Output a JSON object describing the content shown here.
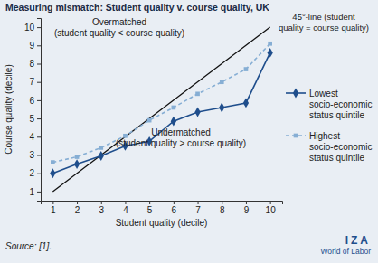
{
  "chart_data": {
    "type": "line",
    "title": "Measuring mismatch: Student quality v. course quality, UK",
    "x_label": "Student quality (decile)",
    "y_label": "Course quality (decile)",
    "x": [
      1,
      2,
      3,
      4,
      5,
      6,
      7,
      8,
      9,
      10
    ],
    "series": [
      {
        "name": "Lowest socio-economic status quintile",
        "color": "#1f4e8c",
        "marker": "diamond",
        "line_style": "solid",
        "values": [
          2.0,
          2.5,
          2.95,
          3.5,
          3.75,
          4.85,
          5.35,
          5.6,
          5.85,
          8.6
        ]
      },
      {
        "name": "Highest socio-economic status quintile",
        "color": "#86aed4",
        "marker": "square",
        "line_style": "dashed",
        "values": [
          2.6,
          2.9,
          3.4,
          4.05,
          4.9,
          5.6,
          6.35,
          7.0,
          7.7,
          9.1
        ]
      }
    ],
    "xlim": [
      0.5,
      10.5
    ],
    "ylim": [
      0.5,
      10.5
    ],
    "xticks": [
      1,
      2,
      3,
      4,
      5,
      6,
      7,
      8,
      9,
      10
    ],
    "yticks": [
      1,
      2,
      3,
      4,
      5,
      6,
      7,
      8,
      9,
      10
    ],
    "grid": false,
    "legend": "right",
    "annotations": [
      [
        "Overmatched",
        "(student quality < course quality)"
      ],
      [
        "Undermatched",
        "(student quality > course quality)"
      ],
      [
        "45°-line (student",
        "quality = course quality)"
      ]
    ],
    "source": "Source: [1].",
    "logo": [
      "IZA",
      "World of Labor"
    ]
  }
}
